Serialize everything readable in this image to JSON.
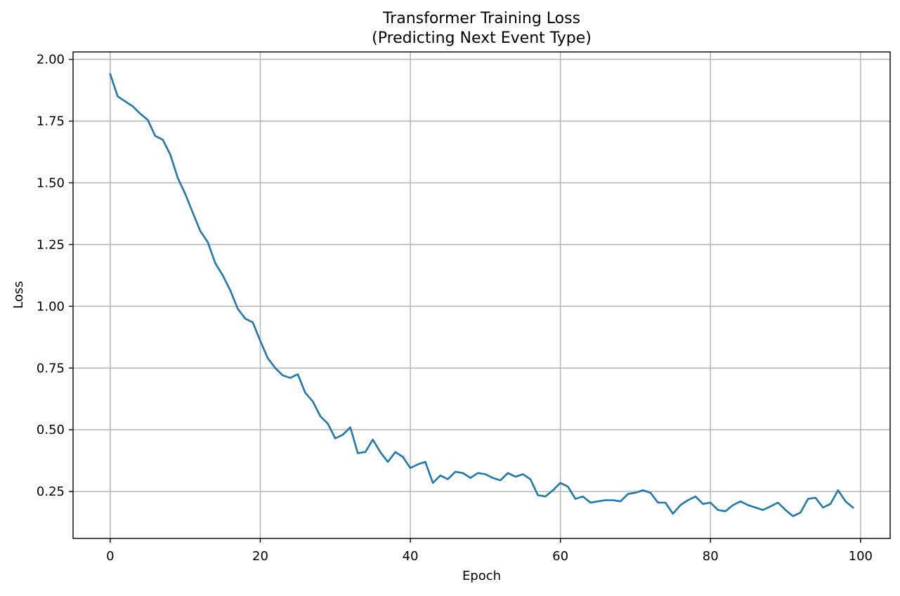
{
  "chart_data": {
    "type": "line",
    "title_lines": [
      "Transformer Training Loss",
      "(Predicting Next Event Type)"
    ],
    "xlabel": "Epoch",
    "ylabel": "Loss",
    "xlim": [
      -4.95,
      103.95
    ],
    "ylim": [
      0.06,
      2.03
    ],
    "xticks": [
      0,
      20,
      40,
      60,
      80,
      100
    ],
    "xtick_labels": [
      "0",
      "20",
      "40",
      "60",
      "80",
      "100"
    ],
    "yticks": [
      0.25,
      0.5,
      0.75,
      1.0,
      1.25,
      1.5,
      1.75,
      2.0
    ],
    "ytick_labels": [
      "0.25",
      "0.50",
      "0.75",
      "1.00",
      "1.25",
      "1.50",
      "1.75",
      "2.00"
    ],
    "grid": true,
    "line_color": "#1f77b4",
    "series": [
      {
        "x": [
          0,
          1,
          2,
          3,
          4,
          5,
          6,
          7,
          8,
          9,
          10,
          11,
          12,
          13,
          14,
          15,
          16,
          17,
          18,
          19,
          20,
          21,
          22,
          23,
          24,
          25,
          26,
          27,
          28,
          29,
          30,
          31,
          32,
          33,
          34,
          35,
          36,
          37,
          38,
          39,
          40,
          41,
          42,
          43,
          44,
          45,
          46,
          47,
          48,
          49,
          50,
          51,
          52,
          53,
          54,
          55,
          56,
          57,
          58,
          59,
          60,
          61,
          62,
          63,
          64,
          65,
          66,
          67,
          68,
          69,
          70,
          71,
          72,
          73,
          74,
          75,
          76,
          77,
          78,
          79,
          80,
          81,
          82,
          83,
          84,
          85,
          86,
          87,
          88,
          89,
          90,
          91,
          92,
          93,
          94,
          95,
          96,
          97,
          98,
          99
        ],
        "values": [
          1.94,
          1.85,
          1.83,
          1.81,
          1.78,
          1.755,
          1.69,
          1.675,
          1.615,
          1.52,
          1.455,
          1.38,
          1.305,
          1.26,
          1.175,
          1.125,
          1.065,
          0.99,
          0.95,
          0.935,
          0.86,
          0.79,
          0.75,
          0.72,
          0.71,
          0.725,
          0.65,
          0.615,
          0.555,
          0.525,
          0.465,
          0.48,
          0.51,
          0.405,
          0.41,
          0.46,
          0.41,
          0.37,
          0.41,
          0.39,
          0.345,
          0.36,
          0.37,
          0.285,
          0.315,
          0.3,
          0.33,
          0.325,
          0.305,
          0.325,
          0.32,
          0.305,
          0.295,
          0.325,
          0.31,
          0.32,
          0.3,
          0.235,
          0.23,
          0.255,
          0.285,
          0.27,
          0.22,
          0.23,
          0.205,
          0.21,
          0.215,
          0.215,
          0.21,
          0.24,
          0.245,
          0.255,
          0.245,
          0.205,
          0.205,
          0.16,
          0.195,
          0.215,
          0.23,
          0.2,
          0.205,
          0.175,
          0.17,
          0.195,
          0.21,
          0.195,
          0.185,
          0.175,
          0.19,
          0.205,
          0.175,
          0.15,
          0.165,
          0.22,
          0.225,
          0.185,
          0.2,
          0.255,
          0.21,
          0.185
        ]
      }
    ]
  }
}
